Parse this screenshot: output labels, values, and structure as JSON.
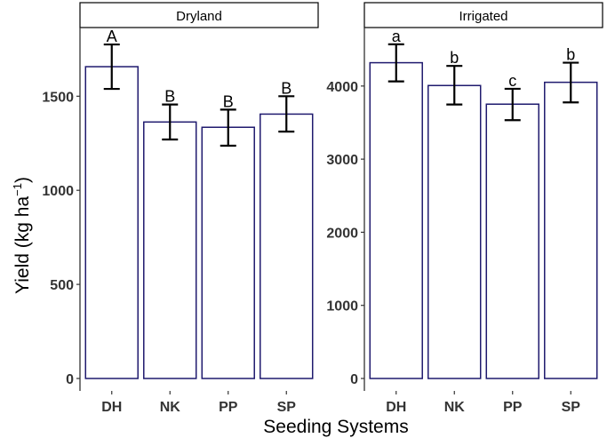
{
  "chart_data": [
    {
      "type": "bar",
      "title": "Dryland",
      "categories": [
        "DH",
        "NK",
        "PP",
        "SP"
      ],
      "values": [
        1657,
        1363,
        1335,
        1405
      ],
      "error_low": [
        1539,
        1270,
        1237,
        1312
      ],
      "error_high": [
        1775,
        1456,
        1429,
        1500
      ],
      "letters": [
        "A",
        "B",
        "B",
        "B"
      ],
      "yticks": [
        0,
        500,
        1000,
        1500
      ],
      "ylim": [
        0,
        1865
      ]
    },
    {
      "type": "bar",
      "title": "Irrigated",
      "categories": [
        "DH",
        "NK",
        "PP",
        "SP"
      ],
      "values": [
        4319,
        4007,
        3752,
        4051
      ],
      "error_low": [
        4063,
        3747,
        3533,
        3776
      ],
      "error_high": [
        4571,
        4275,
        3962,
        4319
      ],
      "letters": [
        "a",
        "b",
        "c",
        "b"
      ],
      "yticks": [
        0,
        1000,
        2000,
        3000,
        4000
      ],
      "ylim": [
        0,
        4800
      ]
    }
  ],
  "xlabel": "Seeding Systems",
  "ylabel": "Yield (kg ha",
  "ylabel_sup": "−1",
  "ylabel_end": ")",
  "colors": {
    "bar_outline": "#1f1a6e",
    "bar_fill": "#ffffff",
    "error_bar": "#000000",
    "axis": "#333333"
  }
}
